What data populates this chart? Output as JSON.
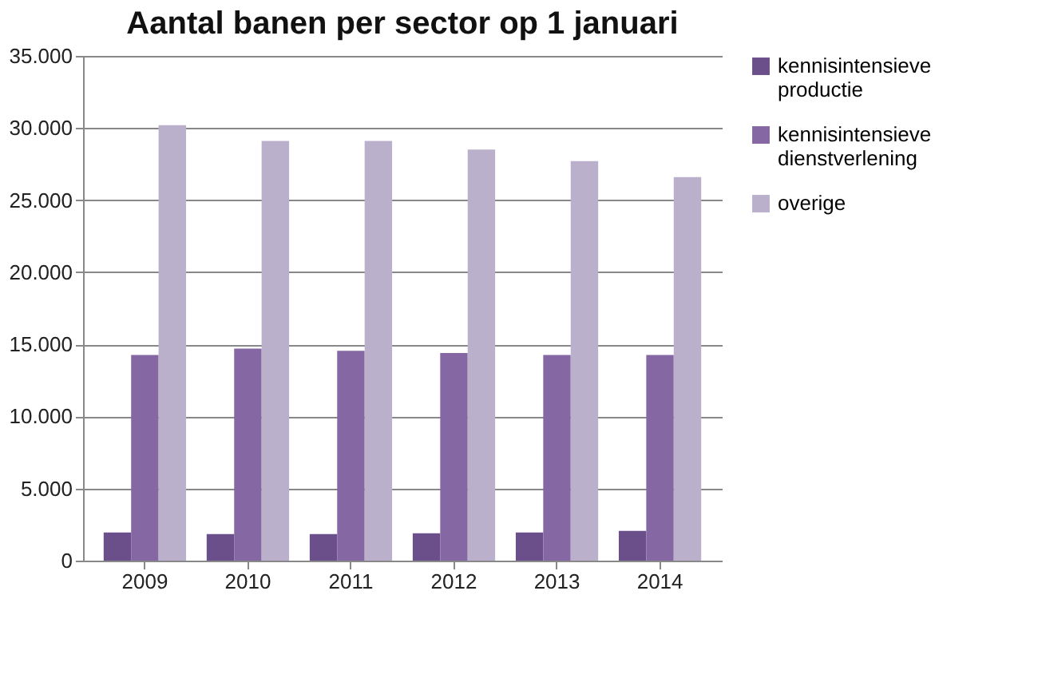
{
  "chart_data": {
    "type": "bar",
    "title": "Aantal banen per sector op 1 januari",
    "categories": [
      "2009",
      "2010",
      "2011",
      "2012",
      "2013",
      "2014"
    ],
    "series": [
      {
        "name": "kennisintensieve productie",
        "color": "#6b4f8a",
        "values": [
          1950,
          1840,
          1840,
          1900,
          1950,
          2060
        ]
      },
      {
        "name": "kennisintensieve dienstverlening",
        "color": "#8567a3",
        "values": [
          14260,
          14700,
          14550,
          14400,
          14260,
          14260
        ]
      },
      {
        "name": "overige",
        "color": "#bab0cc",
        "values": [
          30200,
          29100,
          29100,
          28500,
          27700,
          26600
        ]
      }
    ],
    "ylim": [
      0,
      35000
    ],
    "yticks": [
      {
        "value": 0,
        "label": "0"
      },
      {
        "value": 5000,
        "label": "5.000"
      },
      {
        "value": 10000,
        "label": "10.000"
      },
      {
        "value": 15000,
        "label": "15.000"
      },
      {
        "value": 20000,
        "label": "20.000"
      },
      {
        "value": 25000,
        "label": "25.000"
      },
      {
        "value": 30000,
        "label": "30.000"
      },
      {
        "value": 35000,
        "label": "35.000"
      }
    ],
    "grid": "y",
    "legend": "right"
  }
}
